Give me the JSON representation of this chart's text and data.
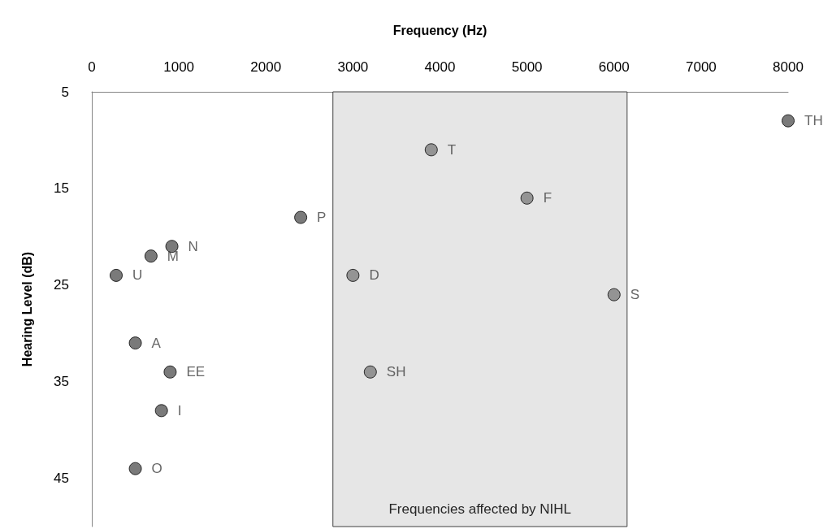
{
  "chart_data": {
    "type": "scatter",
    "xlabel": "Frequency (Hz)",
    "ylabel": "Hearing Level (dB)",
    "x": [
      8000,
      3900,
      5000,
      2400,
      920,
      680,
      280,
      3000,
      6000,
      500,
      900,
      3200,
      800,
      500
    ],
    "values": [
      8,
      11,
      16,
      18,
      21,
      22,
      24,
      24,
      26,
      31,
      34,
      34,
      38,
      44
    ],
    "value_labels": [
      "TH",
      "T",
      "F",
      "P",
      "N",
      "M",
      "U",
      "D",
      "S",
      "A",
      "EE",
      "SH",
      "I",
      "O"
    ],
    "colors": [
      "#595959",
      "#808080",
      "#808080",
      "#595959",
      "#595959",
      "#595959",
      "#595959",
      "#808080",
      "#808080",
      "#595959",
      "#595959",
      "#808080",
      "#595959",
      "#595959"
    ],
    "xlim": [
      0,
      8000
    ],
    "xticks": [
      0,
      1000,
      2000,
      3000,
      4000,
      5000,
      6000,
      7000,
      8000
    ],
    "ylim": [
      50,
      5
    ],
    "yticks": [
      5,
      15,
      25,
      35,
      45
    ],
    "bands": [
      {
        "axis": "x",
        "from": 2770,
        "to": 6150,
        "label": "Frequencies affected by NIHL",
        "color": "#e6e6e6"
      }
    ],
    "marker": "circle",
    "grid": false
  }
}
